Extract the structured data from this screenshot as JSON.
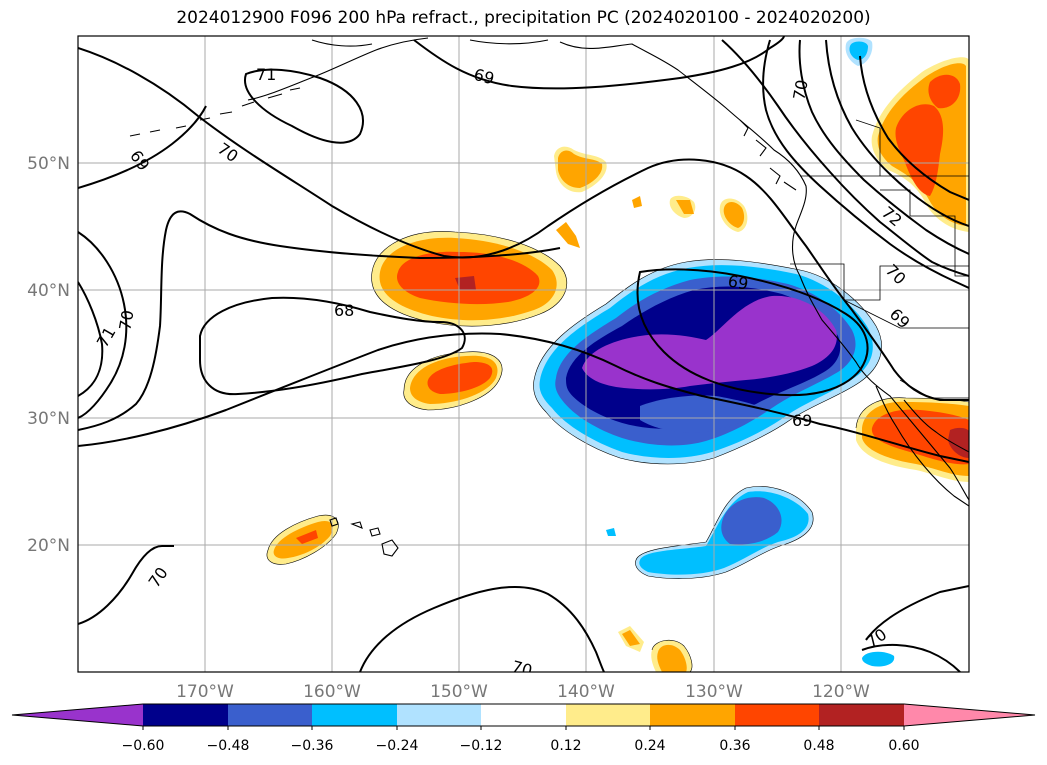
{
  "title": "2024012900 F096 200 hPa refract., precipitation PC (2024020100 - 2024020200)",
  "map": {
    "lon_ticks": [
      "170°W",
      "160°W",
      "150°W",
      "140°W",
      "130°W",
      "120°W"
    ],
    "lat_ticks": [
      "50°N",
      "40°N",
      "30°N",
      "20°N"
    ],
    "contour_labels": [
      "71",
      "69",
      "70",
      "69",
      "70",
      "71",
      "70",
      "68",
      "69",
      "69",
      "72",
      "70",
      "69",
      "70",
      "70",
      "70"
    ]
  },
  "colorbar": {
    "tick_labels": [
      "−0.60",
      "−0.48",
      "−0.36",
      "−0.24",
      "−0.12",
      "0.12",
      "0.24",
      "0.36",
      "0.48",
      "0.60"
    ],
    "colors": [
      "#9933cc",
      "#00008b",
      "#3a5fcd",
      "#00bfff",
      "#b0e2ff",
      "#ffffff",
      "#ffec8b",
      "#ffa500",
      "#ff4500",
      "#b22222",
      "#ff88aa"
    ]
  }
}
